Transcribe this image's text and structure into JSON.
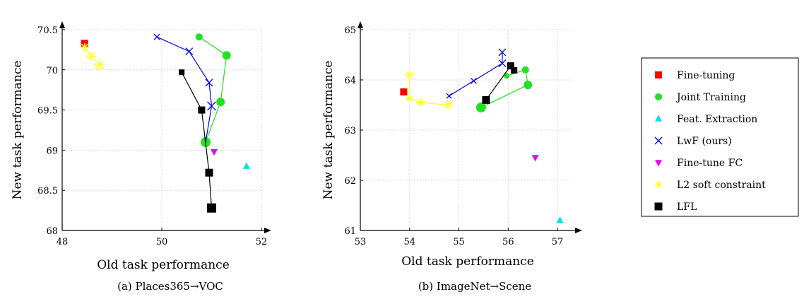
{
  "chart_data": [
    {
      "type": "scatter",
      "caption": "(a)  Places365→VOC",
      "xlabel": "Old task performance",
      "ylabel": "New task performance",
      "xlim": [
        48,
        52
      ],
      "ylim": [
        68,
        70.5
      ],
      "xticks": [
        48,
        50,
        52
      ],
      "yticks": [
        68,
        68.5,
        69,
        69.5,
        70,
        70.5
      ],
      "ytick_labels": [
        "68",
        "68.5",
        "69",
        "69.5",
        "70",
        "70.5"
      ],
      "grid": true,
      "series": [
        {
          "name": "Fine-tuning",
          "marker": "square",
          "color": "#ff0000",
          "connect": false,
          "points": [
            [
              48.45,
              70.33
            ]
          ]
        },
        {
          "name": "Joint Training",
          "marker": "circle",
          "color": "#22e022",
          "connect": true,
          "points": [
            [
              50.75,
              70.41
            ],
            [
              51.3,
              70.18
            ],
            [
              51.18,
              69.6
            ],
            [
              50.88,
              69.1
            ]
          ],
          "sizes": [
            5,
            6,
            6,
            7
          ]
        },
        {
          "name": "Feat. Extraction",
          "marker": "triangle-up",
          "color": "#00e0f0",
          "connect": false,
          "points": [
            [
              51.7,
              68.8
            ]
          ]
        },
        {
          "name": "LwF (ours)",
          "marker": "x",
          "color": "#0000ee",
          "connect": true,
          "points": [
            [
              49.9,
              70.41
            ],
            [
              50.55,
              70.23
            ],
            [
              50.95,
              69.84
            ],
            [
              51.0,
              69.55
            ],
            [
              50.88,
              69.1
            ]
          ],
          "sizes": [
            4,
            5,
            5,
            6,
            0
          ]
        },
        {
          "name": "Fine-tune FC",
          "marker": "triangle-down",
          "color": "#ee00ee",
          "connect": false,
          "points": [
            [
              51.05,
              68.98
            ]
          ]
        },
        {
          "name": "L2 soft constraint",
          "marker": "asterisk",
          "color": "#ffff33",
          "connect": true,
          "points": [
            [
              48.45,
              70.28
            ],
            [
              48.58,
              70.17
            ],
            [
              48.75,
              70.06
            ]
          ],
          "sizes": [
            6,
            7,
            8
          ]
        },
        {
          "name": "LFL",
          "marker": "square",
          "color": "#000000",
          "connect": true,
          "points": [
            [
              50.4,
              69.97
            ],
            [
              50.8,
              69.5
            ],
            [
              50.95,
              68.72
            ],
            [
              51.0,
              68.28
            ]
          ],
          "sizes": [
            3.5,
            4.5,
            5,
            6
          ]
        }
      ]
    },
    {
      "type": "scatter",
      "caption": "(b)  ImageNet→Scene",
      "xlabel": "Old task performance",
      "ylabel": "New task performance",
      "xlim": [
        53,
        57.3
      ],
      "ylim": [
        61,
        65
      ],
      "xticks": [
        53,
        54,
        55,
        56,
        57
      ],
      "yticks": [
        61,
        62,
        63,
        64,
        65
      ],
      "ytick_labels": [
        "61",
        "62",
        "63",
        "64",
        "65"
      ],
      "grid": true,
      "series": [
        {
          "name": "Fine-tuning",
          "marker": "square",
          "color": "#ff0000",
          "connect": false,
          "points": [
            [
              53.88,
              63.76
            ]
          ]
        },
        {
          "name": "Joint Training",
          "marker": "circle",
          "color": "#22e022",
          "connect": true,
          "points": [
            [
              55.97,
              64.08
            ],
            [
              56.35,
              64.2
            ],
            [
              56.4,
              63.9
            ],
            [
              55.45,
              63.45
            ]
          ],
          "sizes": [
            4,
            5,
            6,
            7
          ]
        },
        {
          "name": "Feat. Extraction",
          "marker": "triangle-up",
          "color": "#00e0f0",
          "connect": false,
          "points": [
            [
              57.05,
              61.2
            ]
          ]
        },
        {
          "name": "LwF (ours)",
          "marker": "x",
          "color": "#0000ee",
          "connect": true,
          "points": [
            [
              54.8,
              63.68
            ],
            [
              55.3,
              63.98
            ],
            [
              55.88,
              64.33
            ],
            [
              55.88,
              64.55
            ]
          ],
          "sizes": [
            3.5,
            4,
            5,
            5
          ]
        },
        {
          "name": "Fine-tune FC",
          "marker": "triangle-down",
          "color": "#ee00ee",
          "connect": false,
          "points": [
            [
              56.55,
              62.45
            ]
          ]
        },
        {
          "name": "L2 soft constraint",
          "marker": "asterisk",
          "color": "#ffff33",
          "connect": true,
          "points": [
            [
              54.0,
              64.1
            ],
            [
              54.0,
              63.63
            ],
            [
              54.22,
              63.55
            ],
            [
              54.78,
              63.5
            ]
          ],
          "sizes": [
            6,
            5,
            6,
            7
          ]
        },
        {
          "name": "LFL",
          "marker": "square",
          "color": "#000000",
          "connect": true,
          "points": [
            [
              55.55,
              63.6
            ],
            [
              56.05,
              64.28
            ],
            [
              56.12,
              64.19
            ]
          ],
          "sizes": [
            5,
            4.5,
            4
          ]
        }
      ]
    }
  ],
  "legend": [
    {
      "label": "Fine-tuning",
      "marker": "square",
      "color": "#ff0000"
    },
    {
      "label": "Joint Training",
      "marker": "circle",
      "color": "#22e022"
    },
    {
      "label": "Feat. Extraction",
      "marker": "triangle-up",
      "color": "#00e0f0"
    },
    {
      "label": "LwF (ours)",
      "marker": "x",
      "color": "#0000ee"
    },
    {
      "label": "Fine-tune FC",
      "marker": "triangle-down",
      "color": "#ee00ee"
    },
    {
      "label": "L2 soft constraint",
      "marker": "asterisk",
      "color": "#ffff33"
    },
    {
      "label": "LFL",
      "marker": "square",
      "color": "#000000"
    }
  ]
}
